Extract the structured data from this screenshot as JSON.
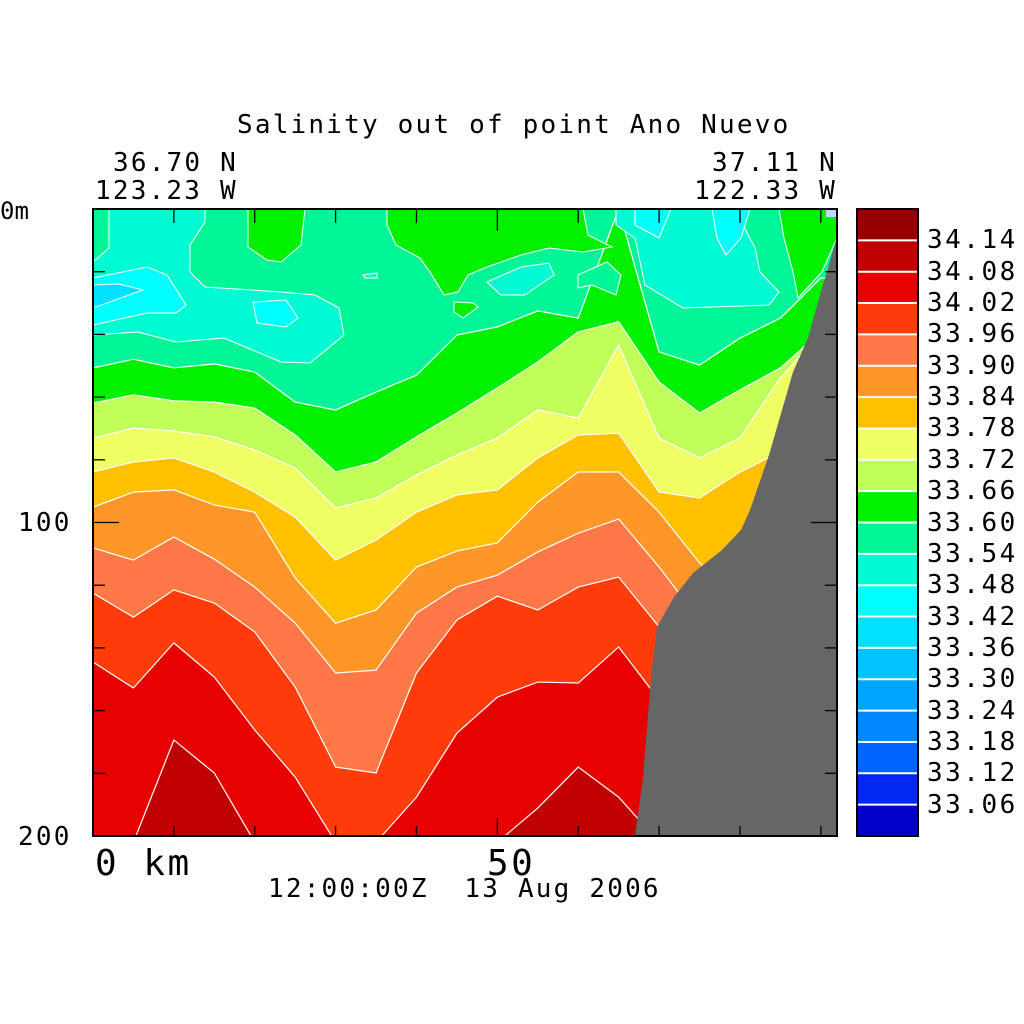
{
  "chart_data": {
    "type": "heatmap",
    "subtype": "filled-contour-section",
    "title": "Salinity out of point Ano Nuevo",
    "start_location": {
      "lat": "36.70 N",
      "lon": "123.23 W"
    },
    "end_location": {
      "lat": "37.11 N",
      "lon": "122.33 W"
    },
    "xlabel": "km",
    "x_tick_labels": [
      "0 km",
      "50"
    ],
    "y_tick_labels": [
      "0m",
      "100",
      "200"
    ],
    "xlim": [
      0,
      92
    ],
    "ylim_depth_m": [
      0,
      200
    ],
    "timestamp": "12:00:00Z  13 Aug 2006",
    "colorbar": {
      "labels": [
        "34.14",
        "34.08",
        "34.02",
        "33.96",
        "33.90",
        "33.84",
        "33.78",
        "33.72",
        "33.66",
        "33.60",
        "33.54",
        "33.48",
        "33.42",
        "33.36",
        "33.30",
        "33.24",
        "33.18",
        "33.12",
        "33.06"
      ],
      "colors": [
        "#960000",
        "#c00000",
        "#e60000",
        "#ff3c0a",
        "#ff7846",
        "#ff9628",
        "#ffc000",
        "#f0ff64",
        "#c0ff5a",
        "#00f000",
        "#00f596",
        "#00fad2",
        "#00ffff",
        "#00e1ff",
        "#00c3ff",
        "#00a5ff",
        "#0087ff",
        "#0064ff",
        "#0028f0",
        "#0000c8"
      ]
    },
    "x_km": [
      0,
      5,
      10,
      15,
      20,
      25,
      30,
      35,
      40,
      45,
      50,
      55,
      60,
      65,
      70,
      75,
      80,
      85,
      90
    ],
    "background_band": {
      "range": "33.54-33.60",
      "color": "#00f596"
    },
    "contours": [
      {
        "level": 33.6,
        "band_below_color": "#00f000",
        "depth_m": [
          50.7,
          47.9,
          50.7,
          49.4,
          52.0,
          61.6,
          64.1,
          58.4,
          53.0,
          40.2,
          37.6,
          32.5,
          34.8,
          0,
          45.6,
          49.8,
          41.2,
          34.8,
          22.0
        ]
      },
      {
        "level": 33.66,
        "band_below_color": "#c0ff5a",
        "depth_m": [
          61.9,
          59.3,
          61.2,
          61.6,
          63.5,
          72.1,
          83.9,
          80.7,
          72.7,
          65.1,
          57.1,
          48.8,
          39.2,
          36.0,
          55.2,
          65.1,
          57.7,
          50.7,
          39.2
        ]
      },
      {
        "level": 33.72,
        "band_below_color": "#f0ff64",
        "depth_m": [
          73.1,
          69.9,
          70.8,
          72.7,
          76.9,
          82.6,
          95.4,
          92.2,
          84.9,
          78.5,
          73.1,
          64.1,
          66.7,
          43.4,
          73.1,
          79.4,
          73.1,
          53.9,
          39.2
        ]
      },
      {
        "level": 33.78,
        "band_below_color": "#ffc000",
        "depth_m": [
          83.9,
          80.7,
          79.4,
          83.9,
          90.3,
          98.3,
          112.0,
          105.6,
          96.7,
          91.2,
          89.6,
          79.4,
          72.1,
          71.5,
          90.3,
          92.2,
          83.9,
          77.5,
          73.1
        ]
      },
      {
        "level": 33.84,
        "band_below_color": "#ff9628",
        "depth_m": [
          95.1,
          90.3,
          89.6,
          94.4,
          96.7,
          117.7,
          132.1,
          127.9,
          114.2,
          109.1,
          106.5,
          93.5,
          83.9,
          83.9,
          96.7,
          112.9,
          124.7,
          124.7,
          124.7
        ]
      },
      {
        "level": 33.9,
        "band_below_color": "#ff7846",
        "depth_m": [
          108.1,
          112.0,
          104.6,
          111.7,
          120.6,
          132.1,
          148.0,
          147.1,
          128.9,
          120.6,
          116.8,
          109.4,
          103.4,
          98.9,
          114.2,
          131.1,
          131.1,
          131.1,
          131.1
        ]
      },
      {
        "level": 33.96,
        "band_below_color": "#ff3c0a",
        "depth_m": [
          122.5,
          130.2,
          121.5,
          125.7,
          134.9,
          152.5,
          178.0,
          179.9,
          148.0,
          131.1,
          123.5,
          127.9,
          120.6,
          117.4,
          133.3,
          143.9,
          143.9,
          143.9,
          143.9
        ]
      },
      {
        "level": 34.02,
        "band_below_color": "#e60000",
        "depth_m": [
          144.5,
          152.8,
          138.4,
          149.3,
          166.2,
          181.2,
          202,
          202,
          187.6,
          167.2,
          155.7,
          150.9,
          151.2,
          139.7,
          156.6,
          156.6,
          156.6,
          156.6,
          156.6
        ]
      },
      {
        "level": 34.08,
        "band_below_color": "#c00000",
        "depth_m": [
          202,
          202,
          169.4,
          179.9,
          202,
          202,
          202,
          202,
          202,
          202,
          202,
          191.1,
          178.0,
          187.6,
          202,
          202,
          202,
          202,
          202
        ]
      }
    ],
    "land_color": "#666666"
  }
}
